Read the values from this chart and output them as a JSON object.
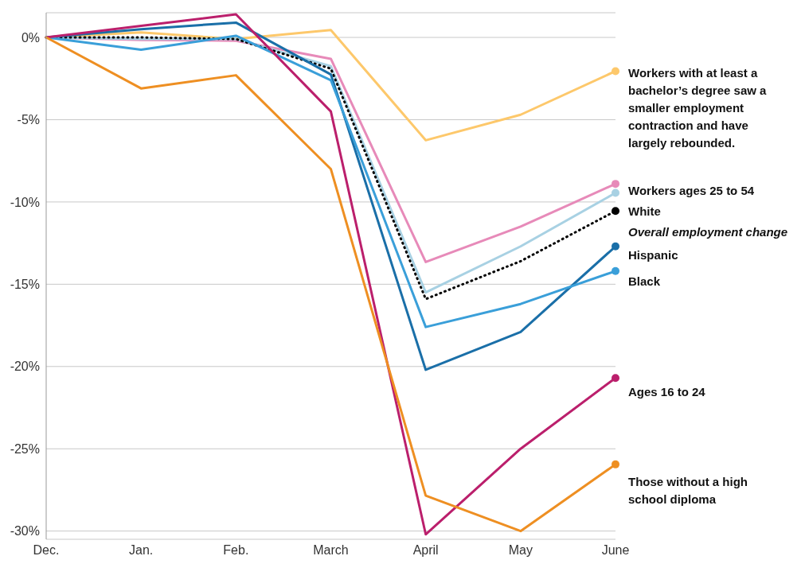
{
  "chart_data": {
    "type": "line",
    "categories": [
      "Dec.",
      "Jan.",
      "Feb.",
      "March",
      "April",
      "May",
      "June"
    ],
    "series": [
      {
        "name": "Workers with at least a bachelor’s degree saw a smaller employment contraction and have largely rebounded.",
        "color": "#fdc86b",
        "values": [
          0,
          0.3,
          -0.1,
          0.45,
          -6.25,
          -4.7,
          -2.05
        ]
      },
      {
        "name": "Workers ages 25 to 54",
        "color": "#e78ab9",
        "values": [
          0,
          -0.15,
          -0.2,
          -1.3,
          -13.65,
          -11.5,
          -8.9
        ]
      },
      {
        "name": "White",
        "color": "#a8d1e3",
        "values": [
          0,
          -0.1,
          -0.1,
          -1.75,
          -15.5,
          -12.7,
          -9.45
        ]
      },
      {
        "name": "Overall employment change",
        "color": "#000000",
        "line_style": "dotted",
        "values": [
          0,
          0,
          -0.1,
          -1.9,
          -15.9,
          -13.6,
          -10.55
        ]
      },
      {
        "name": "Hispanic",
        "color": "#1a6fa8",
        "values": [
          0,
          0.5,
          0.9,
          -2.25,
          -20.2,
          -17.9,
          -12.7
        ]
      },
      {
        "name": "Black",
        "color": "#3a9fd9",
        "values": [
          0,
          -0.75,
          0.1,
          -2.6,
          -17.6,
          -16.2,
          -14.2
        ]
      },
      {
        "name": "Ages 16 to 24",
        "color": "#bb1f6c",
        "values": [
          0,
          0.7,
          1.4,
          -4.5,
          -30.2,
          -25,
          -20.7
        ]
      },
      {
        "name": "Those without a high school diploma",
        "color": "#ee8f22",
        "values": [
          0,
          -3.1,
          -2.3,
          -8,
          -27.85,
          -30,
          -25.95
        ]
      }
    ],
    "ylim": [
      -30.5,
      1.5
    ],
    "yticks": [
      {
        "value": 0,
        "label": "0%"
      },
      {
        "value": -5,
        "label": "-5%"
      },
      {
        "value": -10,
        "label": "-10%"
      },
      {
        "value": -15,
        "label": "-15%"
      },
      {
        "value": -20,
        "label": "-20%"
      },
      {
        "value": -25,
        "label": "-25%"
      },
      {
        "value": -30,
        "label": "-30%"
      }
    ],
    "grid": "y",
    "line_style": "solid"
  }
}
